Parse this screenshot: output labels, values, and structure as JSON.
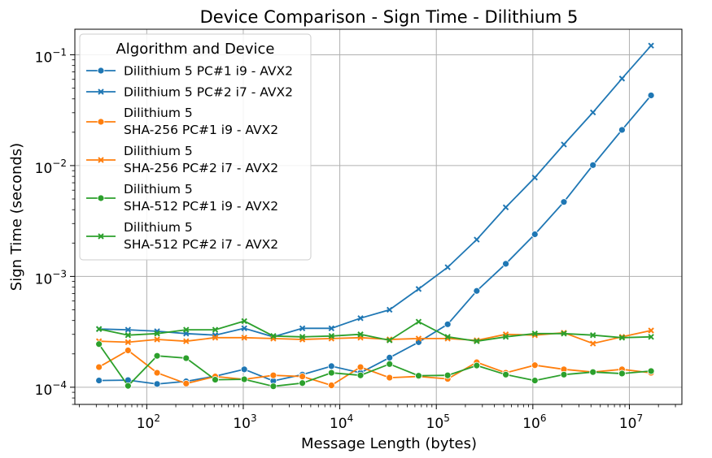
{
  "chart_data": {
    "type": "line",
    "title": "Device Comparison - Sign Time - Dilithium 5",
    "xlabel": "Message Length (bytes)",
    "ylabel": "Sign Time (seconds)",
    "xscale": "log",
    "yscale": "log",
    "xlim": [
      18,
      35000000
    ],
    "ylim": [
      7e-05,
      0.17
    ],
    "grid": true,
    "legend_title": "Algorithm and Device",
    "legend_position": "top-left",
    "x_ticks": [
      {
        "value": 100,
        "base": "10",
        "exp": "2"
      },
      {
        "value": 1000,
        "base": "10",
        "exp": "3"
      },
      {
        "value": 10000,
        "base": "10",
        "exp": "4"
      },
      {
        "value": 100000,
        "base": "10",
        "exp": "5"
      },
      {
        "value": 1000000,
        "base": "10",
        "exp": "6"
      },
      {
        "value": 10000000,
        "base": "10",
        "exp": "7"
      }
    ],
    "y_ticks": [
      {
        "value": 0.0001,
        "base": "10",
        "exp": "−4"
      },
      {
        "value": 0.001,
        "base": "10",
        "exp": "−3"
      },
      {
        "value": 0.01,
        "base": "10",
        "exp": "−2"
      },
      {
        "value": 0.1,
        "base": "10",
        "exp": "−1"
      }
    ],
    "x": [
      32,
      64,
      128,
      256,
      512,
      1024,
      2048,
      4096,
      8192,
      16384,
      32768,
      65536,
      131072,
      262144,
      524288,
      1048576,
      2097152,
      4194304,
      8388608,
      16777216
    ],
    "series": [
      {
        "name": "Dilithium 5 PC#1 i9 - AVX2",
        "color": "#1f77b4",
        "marker": "circle",
        "values": [
          0.000115,
          0.000116,
          0.000107,
          0.000113,
          0.000126,
          0.000145,
          0.000114,
          0.00013,
          0.000155,
          0.000135,
          0.000185,
          0.000255,
          0.00037,
          0.00074,
          0.0013,
          0.0024,
          0.0047,
          0.0101,
          0.021,
          0.043
        ]
      },
      {
        "name": "Dilithium 5 PC#2 i7 - AVX2",
        "color": "#1f77b4",
        "marker": "x",
        "values": [
          0.000335,
          0.00033,
          0.00032,
          0.000305,
          0.000295,
          0.00034,
          0.000285,
          0.00034,
          0.00034,
          0.00042,
          0.0005,
          0.00077,
          0.00121,
          0.00215,
          0.0042,
          0.0078,
          0.0155,
          0.0302,
          0.061,
          0.121
        ]
      },
      {
        "name": "Dilithium 5\nSHA-256 PC#1 i9 - AVX2",
        "color": "#ff7f0e",
        "marker": "circle",
        "values": [
          0.000152,
          0.000215,
          0.000135,
          0.000108,
          0.000125,
          0.000118,
          0.000128,
          0.000125,
          0.000104,
          0.000152,
          0.000122,
          0.000125,
          0.000119,
          0.000168,
          0.000135,
          0.000158,
          0.000145,
          0.000137,
          0.000145,
          0.000135
        ]
      },
      {
        "name": "Dilithium 5\nSHA-256 PC#2 i7 - AVX2",
        "color": "#ff7f0e",
        "marker": "x",
        "values": [
          0.00026,
          0.000255,
          0.00027,
          0.00026,
          0.00028,
          0.00028,
          0.000275,
          0.00027,
          0.000275,
          0.00028,
          0.00027,
          0.000275,
          0.000275,
          0.000265,
          0.0003,
          0.000295,
          0.00031,
          0.000248,
          0.000285,
          0.000325
        ]
      },
      {
        "name": "Dilithium 5\nSHA-512 PC#1 i9 - AVX2",
        "color": "#2ca02c",
        "marker": "circle",
        "values": [
          0.000245,
          0.000103,
          0.000192,
          0.000183,
          0.000117,
          0.000118,
          0.000102,
          0.000109,
          0.000135,
          0.000128,
          0.000162,
          0.000127,
          0.000128,
          0.000157,
          0.00013,
          0.000115,
          0.00013,
          0.000137,
          0.000133,
          0.00014
        ]
      },
      {
        "name": "Dilithium 5\nSHA-512 PC#2 i7 - AVX2",
        "color": "#2ca02c",
        "marker": "x",
        "values": [
          0.000335,
          0.000295,
          0.000305,
          0.00033,
          0.00033,
          0.000395,
          0.00029,
          0.000285,
          0.00029,
          0.0003,
          0.000265,
          0.00039,
          0.000285,
          0.00026,
          0.000285,
          0.000305,
          0.000305,
          0.000295,
          0.00028,
          0.000285
        ]
      }
    ]
  }
}
